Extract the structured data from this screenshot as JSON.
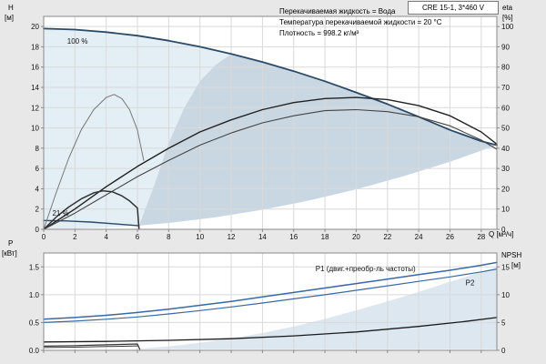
{
  "header": {
    "model": "CRE 15-1, 3*460 V"
  },
  "info_lines": {
    "line1": "Перекачиваемая жидкость = Вода",
    "line2": "Температура перекачиваемой жидкости = 20 °C",
    "line3": "Плотность = 998.2 кг/м³"
  },
  "axes_labels": {
    "top_left_1": "H",
    "top_left_2": "[м]",
    "top_right_1": "eta",
    "top_right_2": "[%]",
    "bottom_left_1": "P",
    "bottom_left_2": "[кВт]",
    "bottom_right_1": "NPSH",
    "bottom_right_2": "[м]",
    "x_axis": "Q [м³/ч]"
  },
  "colors": {
    "page_bg": "#e8e8e8",
    "plot_bg": "#ffffff",
    "grid": "#d9d9d9",
    "frame": "#8a8a8a",
    "pump_curve": "#2b4a68",
    "power_curve": "#3a69a5",
    "eta_dark": "#222222",
    "eta_gray": "#555555",
    "envelope_light": "#e4eef5",
    "envelope_dark": "#c9d7e3",
    "power_envelope": "#dce7f0",
    "label_blue": "#3a69a5"
  },
  "chart_data": [
    {
      "id": "hq-chart",
      "type": "line",
      "title": "",
      "xlabel": "Q [м³/ч]",
      "ylabel": "H [м]",
      "ylabel_right": "eta [%]",
      "xlim": [
        0,
        29
      ],
      "ylim": [
        0,
        21
      ],
      "ylim_right": [
        0,
        105
      ],
      "x_ticks": [
        0,
        2,
        4,
        6,
        8,
        10,
        12,
        14,
        16,
        18,
        20,
        22,
        24,
        26,
        28
      ],
      "x_tick_labels": [
        "0",
        "2",
        "4",
        "6",
        "8",
        "10",
        "12",
        "14",
        "16",
        "18",
        "20",
        "22",
        "24",
        "26",
        "28"
      ],
      "x_labels_visible": true,
      "y_ticks": [
        0,
        2,
        4,
        6,
        8,
        10,
        12,
        14,
        16,
        18,
        20
      ],
      "y_tick_labels": [
        "0",
        "2",
        "4",
        "6",
        "8",
        "10",
        "12",
        "14",
        "16",
        "18",
        "20"
      ],
      "y_ticks_right": [
        0,
        10,
        20,
        30,
        40,
        50,
        60,
        70,
        80,
        90,
        100
      ],
      "y_tick_labels_right": [
        "0",
        "10",
        "20",
        "30",
        "40",
        "50",
        "60",
        "70",
        "80",
        "90",
        "100"
      ],
      "areas": [
        {
          "id": "speed-envelope-light",
          "color": "#e4eef5",
          "points": [
            [
              0,
              19.8
            ],
            [
              2,
              19.7
            ],
            [
              4,
              19.45
            ],
            [
              6,
              19.1
            ],
            [
              8,
              18.6
            ],
            [
              10,
              18.0
            ],
            [
              12,
              17.3
            ],
            [
              14,
              16.5
            ],
            [
              16,
              15.6
            ],
            [
              18,
              14.6
            ],
            [
              20,
              13.5
            ],
            [
              22,
              12.35
            ],
            [
              24,
              11.1
            ],
            [
              26,
              9.8
            ],
            [
              28,
              8.7
            ],
            [
              29,
              8.3
            ],
            [
              26,
              6.67
            ],
            [
              23,
              5.22
            ],
            [
              20,
              3.95
            ],
            [
              17,
              2.85
            ],
            [
              14,
              1.93
            ],
            [
              11,
              1.19
            ],
            [
              8,
              0.63
            ],
            [
              5,
              0.25
            ],
            [
              2,
              0.04
            ],
            [
              0,
              0
            ]
          ]
        },
        {
          "id": "speed-envelope-dark",
          "color": "#c9d7e3",
          "points": [
            [
              6.1,
              0.37
            ],
            [
              7,
              4.0
            ],
            [
              8,
              8.5
            ],
            [
              9,
              12.0
            ],
            [
              10,
              14.6
            ],
            [
              11,
              16.2
            ],
            [
              12,
              17.3
            ],
            [
              14,
              16.5
            ],
            [
              16,
              15.6
            ],
            [
              18,
              14.6
            ],
            [
              20,
              13.5
            ],
            [
              22,
              12.35
            ],
            [
              24,
              11.1
            ],
            [
              26,
              9.8
            ],
            [
              28,
              8.7
            ],
            [
              29,
              8.3
            ],
            [
              26,
              6.67
            ],
            [
              23,
              5.22
            ],
            [
              20,
              3.95
            ],
            [
              17,
              2.85
            ],
            [
              14,
              1.93
            ],
            [
              11,
              1.19
            ],
            [
              8,
              0.63
            ],
            [
              6.1,
              0.37
            ]
          ]
        }
      ],
      "series": [
        {
          "id": "h-curve-100pct",
          "name": "H at 100 % speed",
          "axis": "left",
          "color": "#2b4a68",
          "width": 1.8,
          "x": [
            0,
            2,
            4,
            6,
            8,
            10,
            12,
            14,
            16,
            18,
            20,
            22,
            24,
            26,
            28,
            29
          ],
          "y": [
            19.8,
            19.7,
            19.45,
            19.1,
            18.6,
            18.0,
            17.3,
            16.5,
            15.6,
            14.6,
            13.5,
            12.35,
            11.1,
            9.8,
            8.7,
            8.3
          ]
        },
        {
          "id": "h-curve-21pct",
          "name": "H at 21 % speed",
          "axis": "left",
          "color": "#2b4a68",
          "width": 1.4,
          "x": [
            0,
            1.5,
            3,
            4.5,
            6.1
          ],
          "y": [
            0.87,
            0.83,
            0.72,
            0.55,
            0.35
          ]
        },
        {
          "id": "eta-pump-100pct",
          "name": "Pump efficiency 100 %",
          "axis": "right",
          "color": "#222222",
          "width": 1.4,
          "x": [
            0,
            2,
            4,
            6,
            8,
            10,
            12,
            14,
            16,
            18,
            20,
            22,
            24,
            26,
            28,
            29
          ],
          "y": [
            0,
            10,
            21,
            31,
            40,
            48,
            54,
            59,
            62.5,
            64.5,
            65,
            64,
            61,
            56,
            48,
            42
          ]
        },
        {
          "id": "eta-total-100pct",
          "name": "Total efficiency 100 %",
          "axis": "right",
          "color": "#444444",
          "width": 1.1,
          "x": [
            0,
            2,
            4,
            6,
            8,
            10,
            12,
            14,
            16,
            18,
            20,
            22,
            24,
            26,
            28,
            29
          ],
          "y": [
            0,
            8,
            17,
            26,
            34,
            41.5,
            47.5,
            52.5,
            56,
            58.5,
            59,
            58,
            55.5,
            51,
            44,
            39.5
          ]
        },
        {
          "id": "eta-pump-21pct",
          "name": "Pump efficiency 21 %",
          "axis": "right",
          "color": "#777777",
          "width": 1,
          "x": [
            0,
            0.8,
            1.6,
            2.4,
            3.2,
            4,
            4.5,
            5,
            5.5,
            6,
            6.4
          ],
          "y": [
            0,
            18,
            35,
            49,
            59,
            65,
            66.5,
            64.5,
            59,
            49,
            34
          ]
        },
        {
          "id": "eta-total-21pct",
          "name": "Total efficiency 21 %",
          "axis": "right",
          "color": "#333333",
          "width": 1.5,
          "x": [
            0,
            0.8,
            1.6,
            2.4,
            3.2,
            3.8,
            4.4,
            5,
            5.5,
            6,
            6.1
          ],
          "y": [
            0,
            6,
            11,
            15,
            18,
            19,
            18.5,
            16.5,
            14,
            10.5,
            0
          ]
        }
      ],
      "annotations": [
        {
          "id": "label-100pct",
          "text": "100 %",
          "x": 1.5,
          "y": 18.3,
          "color": "#000000"
        },
        {
          "id": "label-21pct",
          "text": "21 %",
          "x": 0.55,
          "y": 1.35,
          "color": "#000000"
        }
      ]
    },
    {
      "id": "power-chart",
      "type": "line",
      "title": "",
      "xlabel": "",
      "ylabel": "P [кВт]",
      "ylabel_right": "NPSH [м]",
      "xlim": [
        0,
        29
      ],
      "ylim": [
        0,
        1.75
      ],
      "ylim_right": [
        0,
        17.5
      ],
      "x_ticks": [
        0,
        2,
        4,
        6,
        8,
        10,
        12,
        14,
        16,
        18,
        20,
        22,
        24,
        26,
        28
      ],
      "x_tick_labels": [],
      "x_labels_visible": false,
      "y_ticks": [
        0,
        0.5,
        1.0,
        1.5
      ],
      "y_tick_labels": [
        "0.0",
        "0.5",
        "1.0",
        "1.5"
      ],
      "y_ticks_right": [
        0,
        5,
        10,
        15
      ],
      "y_tick_labels_right": [
        "0",
        "5",
        "10",
        "15"
      ],
      "areas": [
        {
          "id": "power-envelope",
          "color": "#dce7f0",
          "points": [
            [
              5.6,
              0.02
            ],
            [
              8,
              0.07
            ],
            [
              10,
              0.135
            ],
            [
              12,
              0.215
            ],
            [
              14,
              0.31
            ],
            [
              16,
              0.43
            ],
            [
              18,
              0.565
            ],
            [
              20,
              0.72
            ],
            [
              22,
              0.88
            ],
            [
              24,
              1.05
            ],
            [
              26,
              1.23
            ],
            [
              28,
              1.41
            ],
            [
              29,
              1.5
            ],
            [
              29,
              0.02
            ]
          ]
        }
      ],
      "series": [
        {
          "id": "p1-curve",
          "name": "P1 (двиг.+преобр-ль частоты)",
          "axis": "left",
          "color": "#3a69a5",
          "width": 1.5,
          "x": [
            0,
            2,
            4,
            6,
            8,
            10,
            12,
            14,
            16,
            18,
            20,
            22,
            24,
            26,
            28,
            29
          ],
          "y": [
            0.56,
            0.59,
            0.63,
            0.68,
            0.74,
            0.81,
            0.88,
            0.96,
            1.04,
            1.12,
            1.2,
            1.28,
            1.36,
            1.44,
            1.53,
            1.58
          ]
        },
        {
          "id": "p2-curve",
          "name": "P2",
          "axis": "left",
          "color": "#3a69a5",
          "width": 1.2,
          "x": [
            0,
            2,
            4,
            6,
            8,
            10,
            12,
            14,
            16,
            18,
            20,
            22,
            24,
            26,
            28,
            29
          ],
          "y": [
            0.5,
            0.525,
            0.56,
            0.6,
            0.655,
            0.715,
            0.78,
            0.85,
            0.925,
            1.0,
            1.08,
            1.16,
            1.24,
            1.32,
            1.41,
            1.46
          ]
        },
        {
          "id": "npsh-curve",
          "name": "NPSH",
          "axis": "right",
          "color": "#1b1b1b",
          "width": 1.3,
          "x": [
            0,
            4,
            8,
            12,
            16,
            20,
            24,
            27,
            29
          ],
          "y": [
            1.5,
            1.6,
            1.8,
            2.1,
            2.6,
            3.3,
            4.3,
            5.2,
            5.9
          ]
        },
        {
          "id": "p1-curve-21pct",
          "name": "P1 at 21 % speed",
          "axis": "left",
          "color": "#333333",
          "width": 1.2,
          "x": [
            0,
            2,
            4,
            6,
            6.15
          ],
          "y": [
            0.075,
            0.085,
            0.1,
            0.115,
            0.02
          ]
        },
        {
          "id": "p2-curve-21pct",
          "name": "P2 at 21 % speed",
          "axis": "left",
          "color": "#333333",
          "width": 1,
          "x": [
            0,
            2,
            4,
            6
          ],
          "y": [
            0.05,
            0.058,
            0.068,
            0.08
          ]
        }
      ],
      "annotations": [
        {
          "id": "label-p1",
          "text": "P1 (двиг.+преобр-ль частоты)",
          "x": 17.4,
          "y": 1.42,
          "color": "#3a69a5"
        },
        {
          "id": "label-p2",
          "text": "P2",
          "x": 27.0,
          "y": 1.17,
          "color": "#3a69a5"
        }
      ]
    }
  ]
}
